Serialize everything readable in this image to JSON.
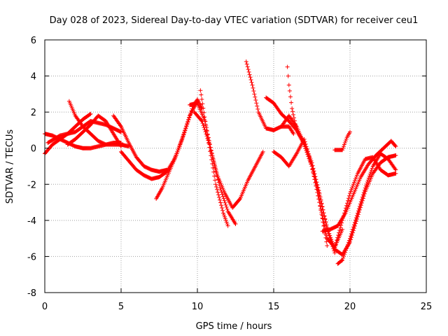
{
  "chart_data": {
    "type": "scatter",
    "title": "Day 028 of 2023, Sidereal Day-to-day VTEC variation (SDTVAR) for receiver ceu1",
    "xlabel": "GPS time / hours",
    "ylabel": "SDTVAR / TECUs",
    "xlim": [
      0,
      25
    ],
    "ylim": [
      -8,
      6
    ],
    "xticks": [
      "0",
      "5",
      "10",
      "15",
      "20",
      "25"
    ],
    "yticks": [
      "-8",
      "-6",
      "-4",
      "-2",
      "0",
      "2",
      "4",
      "6"
    ],
    "grid": true,
    "marker": "+",
    "colors": {
      "series": "#ff0000",
      "grid": "#a0a0a0",
      "axes": "#000000"
    },
    "series": [
      {
        "x": [
          0,
          0.5,
          1,
          1.5,
          2,
          2.5,
          3,
          3.5,
          4,
          4.5,
          5
        ],
        "y": [
          0.8,
          0.7,
          0.5,
          0.3,
          0.1,
          0,
          0,
          0.1,
          0.2,
          0.3,
          0.3
        ]
      },
      {
        "x": [
          0,
          0.5,
          1,
          1.5,
          2,
          2.5,
          3
        ],
        "y": [
          -0.3,
          0.2,
          0.5,
          0.8,
          1.2,
          1.6,
          1.9
        ]
      },
      {
        "x": [
          0.2,
          1,
          2,
          3,
          4,
          5
        ],
        "y": [
          0.3,
          0.7,
          0.9,
          1.5,
          1.3,
          0.9
        ]
      },
      {
        "x": [
          1.6,
          2,
          2.5,
          3,
          3.5,
          4,
          4.5,
          5,
          5.5
        ],
        "y": [
          2.6,
          1.8,
          1.2,
          0.8,
          0.4,
          0.2,
          0.2,
          0.2,
          0.1
        ]
      },
      {
        "x": [
          1.5,
          2,
          2.5,
          3,
          3.5,
          4,
          4.5,
          5
        ],
        "y": [
          0.2,
          0.5,
          0.9,
          1.3,
          1.8,
          1.5,
          0.8,
          0.1
        ]
      },
      {
        "x": [
          4.5,
          5,
          5.5,
          6,
          6.5,
          7,
          7.5,
          8
        ],
        "y": [
          1.8,
          1.2,
          0.3,
          -0.5,
          -1,
          -1.2,
          -1.3,
          -1.2
        ]
      },
      {
        "x": [
          5,
          5.5,
          6,
          6.5,
          7,
          7.5,
          8,
          8.5,
          9,
          9.5,
          10
        ],
        "y": [
          -0.2,
          -0.7,
          -1.2,
          -1.5,
          -1.7,
          -1.6,
          -1.3,
          -0.6,
          0.5,
          1.8,
          2.6
        ]
      },
      {
        "x": [
          7.3,
          7.7,
          8.2,
          8.7,
          9.2,
          9.7,
          10,
          10.3
        ],
        "y": [
          -2.8,
          -2.2,
          -1.2,
          -0.2,
          1,
          2.3,
          2.7,
          2.2
        ]
      },
      {
        "x": [
          9.5,
          10,
          10.5,
          11,
          11.5,
          12,
          12.5
        ],
        "y": [
          2.4,
          2.5,
          1.5,
          -0.5,
          -2.2,
          -3.5,
          -4.2
        ]
      },
      {
        "x": [
          9.8,
          10.3,
          10.8,
          11.3,
          11.8,
          12.3,
          12.8,
          13.3,
          13.8,
          14.3
        ],
        "y": [
          2,
          1.5,
          0.2,
          -1.5,
          -2.5,
          -3.3,
          -2.8,
          -1.8,
          -1,
          -0.2
        ]
      },
      {
        "x": [
          10.2,
          10.7,
          11.2,
          11.7,
          12
        ],
        "y": [
          3.2,
          0.5,
          -2,
          -3.6,
          -4.3
        ]
      },
      {
        "x": [
          13.2,
          13.6,
          14,
          14.5,
          15,
          15.5,
          16,
          16.3
        ],
        "y": [
          4.8,
          3.5,
          2,
          1.1,
          1,
          1.2,
          1.2,
          0.8
        ]
      },
      {
        "x": [
          14.5,
          15,
          15.5,
          16,
          16.5,
          17,
          17.5,
          18,
          18.5
        ],
        "y": [
          2.8,
          2.5,
          1.9,
          1.5,
          1,
          0.2,
          -1,
          -3,
          -5.4
        ]
      },
      {
        "x": [
          15.9,
          16,
          16.2,
          16.5,
          17,
          17.5,
          18,
          18.5,
          19
        ],
        "y": [
          4.5,
          3.5,
          2.2,
          1,
          0.3,
          -0.8,
          -2.5,
          -4.5,
          -5.8
        ]
      },
      {
        "x": [
          15,
          15.5,
          16,
          16.5,
          17,
          17.5,
          18,
          18.5,
          19,
          19.5
        ],
        "y": [
          -0.2,
          -0.5,
          -1,
          -0.3,
          0.5,
          -1,
          -3,
          -5,
          -5.5,
          -4.5
        ]
      },
      {
        "x": [
          15.5,
          16,
          16.5,
          17,
          17.5,
          18,
          18.5,
          19,
          19.5,
          20,
          20.5,
          21,
          21.5,
          22,
          22.5,
          23
        ],
        "y": [
          1.2,
          1.8,
          1.2,
          0.2,
          -1,
          -2.6,
          -4.4,
          -5.6,
          -5.9,
          -5.2,
          -3.8,
          -2.4,
          -1.4,
          -0.8,
          -0.5,
          -0.4
        ]
      },
      {
        "x": [
          18.2,
          18.7,
          19.2,
          19.7,
          20.2,
          20.7,
          21.2,
          21.7,
          22.2,
          22.7,
          23
        ],
        "y": [
          -4.6,
          -4.5,
          -4.3,
          -3.6,
          -2.6,
          -1.6,
          -0.9,
          -0.4,
          0,
          0.4,
          0.1
        ]
      },
      {
        "x": [
          19.2,
          19.5,
          20,
          20.5,
          21,
          21.5,
          22,
          22.5,
          23
        ],
        "y": [
          -6.4,
          -6.2,
          -5,
          -3.6,
          -2.2,
          -1,
          -0.3,
          -0.6,
          -1.2
        ]
      },
      {
        "x": [
          19,
          19.5,
          20,
          20.5,
          21,
          21.5,
          22,
          22.5,
          23
        ],
        "y": [
          -5.5,
          -4,
          -2.5,
          -1.4,
          -0.6,
          -0.5,
          -1.2,
          -1.5,
          -1.4
        ]
      },
      {
        "x": [
          19,
          19.5,
          19.8,
          20
        ],
        "y": [
          -0.1,
          -0.1,
          0.6,
          0.9
        ]
      }
    ]
  }
}
